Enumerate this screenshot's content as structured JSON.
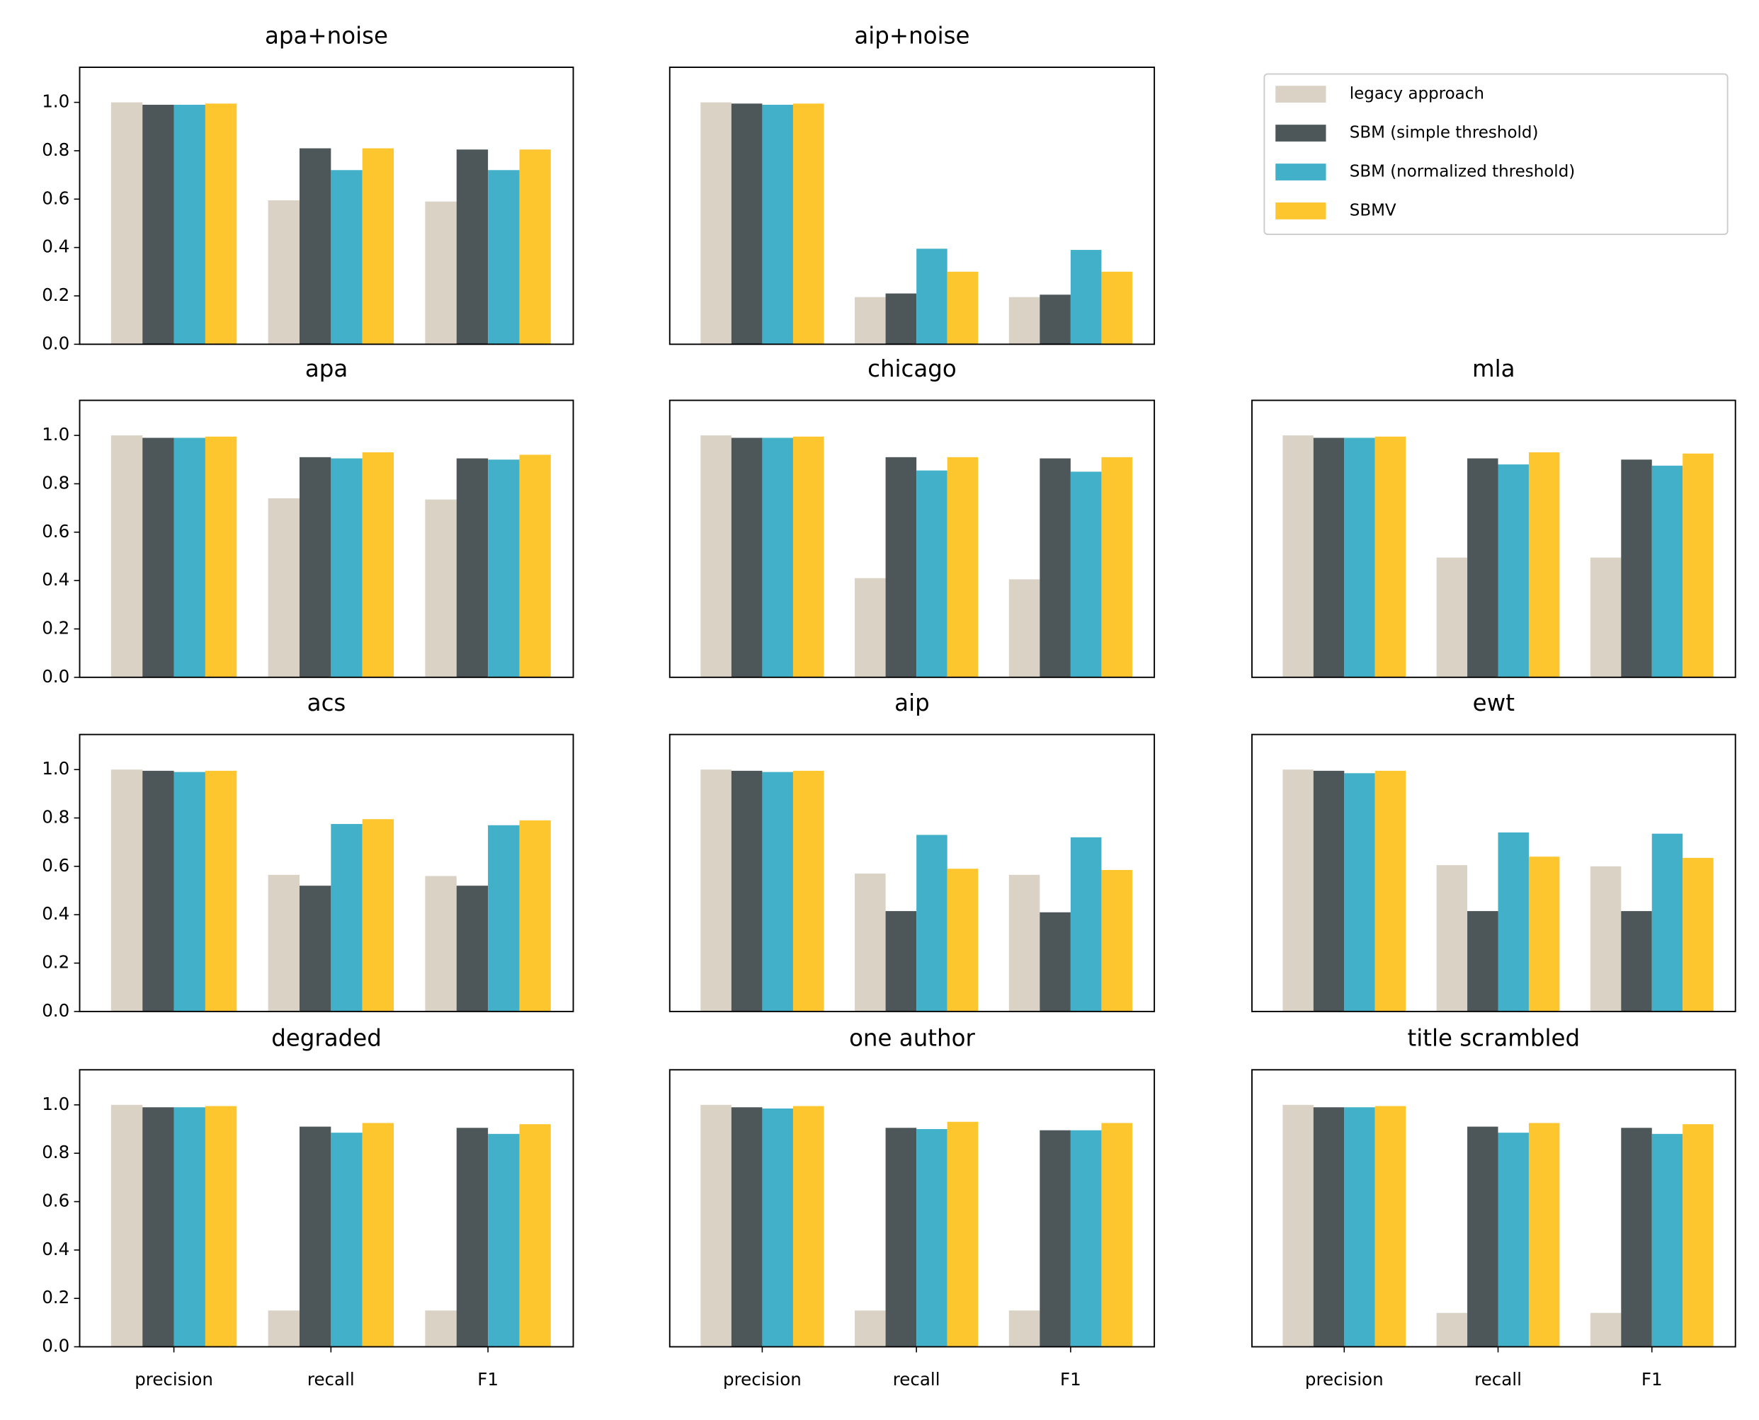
{
  "chart_data": [
    {
      "type": "bar",
      "title": "apa+noise",
      "categories": [
        "precision",
        "recall",
        "F1"
      ],
      "ylim": [
        0,
        1.145
      ],
      "yticks": [
        {
          "value": 0,
          "label": "0.0"
        },
        {
          "value": 0.2,
          "label": "0.2"
        },
        {
          "value": 0.4,
          "label": "0.4"
        },
        {
          "value": 0.6,
          "label": "0.6"
        },
        {
          "value": 0.8,
          "label": "0.8"
        },
        {
          "value": 1,
          "label": "1.0"
        }
      ],
      "series": [
        {
          "name": "legacy approach",
          "color": "#d9d2c5",
          "values": [
            1.0,
            0.595,
            0.59
          ]
        },
        {
          "name": "SBM (simple threshold)",
          "color": "#4d5659",
          "values": [
            0.99,
            0.81,
            0.805
          ]
        },
        {
          "name": "SBM (normalized threshold)",
          "color": "#42b0c8",
          "values": [
            0.99,
            0.72,
            0.72
          ]
        },
        {
          "name": "SBMV",
          "color": "#fdc52e",
          "values": [
            0.995,
            0.81,
            0.805
          ]
        }
      ]
    },
    {
      "type": "bar",
      "title": "aip+noise",
      "categories": [
        "precision",
        "recall",
        "F1"
      ],
      "ylim": [
        0,
        1.145
      ],
      "series": [
        {
          "name": "legacy approach",
          "color": "#d9d2c5",
          "values": [
            1.0,
            0.195,
            0.195
          ]
        },
        {
          "name": "SBM (simple threshold)",
          "color": "#4d5659",
          "values": [
            0.995,
            0.21,
            0.205
          ]
        },
        {
          "name": "SBM (normalized threshold)",
          "color": "#42b0c8",
          "values": [
            0.99,
            0.395,
            0.39
          ]
        },
        {
          "name": "SBMV",
          "color": "#fdc52e",
          "values": [
            0.995,
            0.3,
            0.3
          ]
        }
      ]
    },
    {
      "type": "bar",
      "title": "apa",
      "categories": [
        "precision",
        "recall",
        "F1"
      ],
      "ylim": [
        0,
        1.145
      ],
      "yticks": [
        {
          "value": 0,
          "label": "0.0"
        },
        {
          "value": 0.2,
          "label": "0.2"
        },
        {
          "value": 0.4,
          "label": "0.4"
        },
        {
          "value": 0.6,
          "label": "0.6"
        },
        {
          "value": 0.8,
          "label": "0.8"
        },
        {
          "value": 1,
          "label": "1.0"
        }
      ],
      "series": [
        {
          "name": "legacy approach",
          "color": "#d9d2c5",
          "values": [
            1.0,
            0.74,
            0.735
          ]
        },
        {
          "name": "SBM (simple threshold)",
          "color": "#4d5659",
          "values": [
            0.99,
            0.91,
            0.905
          ]
        },
        {
          "name": "SBM (normalized threshold)",
          "color": "#42b0c8",
          "values": [
            0.99,
            0.905,
            0.9
          ]
        },
        {
          "name": "SBMV",
          "color": "#fdc52e",
          "values": [
            0.995,
            0.93,
            0.92
          ]
        }
      ]
    },
    {
      "type": "bar",
      "title": "chicago",
      "categories": [
        "precision",
        "recall",
        "F1"
      ],
      "ylim": [
        0,
        1.145
      ],
      "series": [
        {
          "name": "legacy approach",
          "color": "#d9d2c5",
          "values": [
            1.0,
            0.41,
            0.405
          ]
        },
        {
          "name": "SBM (simple threshold)",
          "color": "#4d5659",
          "values": [
            0.99,
            0.91,
            0.905
          ]
        },
        {
          "name": "SBM (normalized threshold)",
          "color": "#42b0c8",
          "values": [
            0.99,
            0.855,
            0.85
          ]
        },
        {
          "name": "SBMV",
          "color": "#fdc52e",
          "values": [
            0.995,
            0.91,
            0.91
          ]
        }
      ]
    },
    {
      "type": "bar",
      "title": "mla",
      "categories": [
        "precision",
        "recall",
        "F1"
      ],
      "ylim": [
        0,
        1.145
      ],
      "series": [
        {
          "name": "legacy approach",
          "color": "#d9d2c5",
          "values": [
            1.0,
            0.495,
            0.495
          ]
        },
        {
          "name": "SBM (simple threshold)",
          "color": "#4d5659",
          "values": [
            0.99,
            0.905,
            0.9
          ]
        },
        {
          "name": "SBM (normalized threshold)",
          "color": "#42b0c8",
          "values": [
            0.99,
            0.88,
            0.875
          ]
        },
        {
          "name": "SBMV",
          "color": "#fdc52e",
          "values": [
            0.995,
            0.93,
            0.925
          ]
        }
      ]
    },
    {
      "type": "bar",
      "title": "acs",
      "categories": [
        "precision",
        "recall",
        "F1"
      ],
      "ylim": [
        0,
        1.145
      ],
      "yticks": [
        {
          "value": 0,
          "label": "0.0"
        },
        {
          "value": 0.2,
          "label": "0.2"
        },
        {
          "value": 0.4,
          "label": "0.4"
        },
        {
          "value": 0.6,
          "label": "0.6"
        },
        {
          "value": 0.8,
          "label": "0.8"
        },
        {
          "value": 1,
          "label": "1.0"
        }
      ],
      "series": [
        {
          "name": "legacy approach",
          "color": "#d9d2c5",
          "values": [
            1.0,
            0.565,
            0.56
          ]
        },
        {
          "name": "SBM (simple threshold)",
          "color": "#4d5659",
          "values": [
            0.995,
            0.52,
            0.52
          ]
        },
        {
          "name": "SBM (normalized threshold)",
          "color": "#42b0c8",
          "values": [
            0.99,
            0.775,
            0.77
          ]
        },
        {
          "name": "SBMV",
          "color": "#fdc52e",
          "values": [
            0.995,
            0.795,
            0.79
          ]
        }
      ]
    },
    {
      "type": "bar",
      "title": "aip",
      "categories": [
        "precision",
        "recall",
        "F1"
      ],
      "ylim": [
        0,
        1.145
      ],
      "series": [
        {
          "name": "legacy approach",
          "color": "#d9d2c5",
          "values": [
            1.0,
            0.57,
            0.565
          ]
        },
        {
          "name": "SBM (simple threshold)",
          "color": "#4d5659",
          "values": [
            0.995,
            0.415,
            0.41
          ]
        },
        {
          "name": "SBM (normalized threshold)",
          "color": "#42b0c8",
          "values": [
            0.99,
            0.73,
            0.72
          ]
        },
        {
          "name": "SBMV",
          "color": "#fdc52e",
          "values": [
            0.995,
            0.59,
            0.585
          ]
        }
      ]
    },
    {
      "type": "bar",
      "title": "ewt",
      "categories": [
        "precision",
        "recall",
        "F1"
      ],
      "ylim": [
        0,
        1.145
      ],
      "series": [
        {
          "name": "legacy approach",
          "color": "#d9d2c5",
          "values": [
            1.0,
            0.605,
            0.6
          ]
        },
        {
          "name": "SBM (simple threshold)",
          "color": "#4d5659",
          "values": [
            0.995,
            0.415,
            0.415
          ]
        },
        {
          "name": "SBM (normalized threshold)",
          "color": "#42b0c8",
          "values": [
            0.985,
            0.74,
            0.735
          ]
        },
        {
          "name": "SBMV",
          "color": "#fdc52e",
          "values": [
            0.995,
            0.64,
            0.635
          ]
        }
      ]
    },
    {
      "type": "bar",
      "title": "degraded",
      "categories": [
        "precision",
        "recall",
        "F1"
      ],
      "ylim": [
        0,
        1.145
      ],
      "yticks": [
        {
          "value": 0,
          "label": "0.0"
        },
        {
          "value": 0.2,
          "label": "0.2"
        },
        {
          "value": 0.4,
          "label": "0.4"
        },
        {
          "value": 0.6,
          "label": "0.6"
        },
        {
          "value": 0.8,
          "label": "0.8"
        },
        {
          "value": 1,
          "label": "1.0"
        }
      ],
      "series": [
        {
          "name": "legacy approach",
          "color": "#d9d2c5",
          "values": [
            1.0,
            0.15,
            0.15
          ]
        },
        {
          "name": "SBM (simple threshold)",
          "color": "#4d5659",
          "values": [
            0.99,
            0.91,
            0.905
          ]
        },
        {
          "name": "SBM (normalized threshold)",
          "color": "#42b0c8",
          "values": [
            0.99,
            0.885,
            0.88
          ]
        },
        {
          "name": "SBMV",
          "color": "#fdc52e",
          "values": [
            0.995,
            0.925,
            0.92
          ]
        }
      ]
    },
    {
      "type": "bar",
      "title": "one author",
      "categories": [
        "precision",
        "recall",
        "F1"
      ],
      "ylim": [
        0,
        1.145
      ],
      "series": [
        {
          "name": "legacy approach",
          "color": "#d9d2c5",
          "values": [
            1.0,
            0.15,
            0.15
          ]
        },
        {
          "name": "SBM (simple threshold)",
          "color": "#4d5659",
          "values": [
            0.99,
            0.905,
            0.895
          ]
        },
        {
          "name": "SBM (normalized threshold)",
          "color": "#42b0c8",
          "values": [
            0.985,
            0.9,
            0.895
          ]
        },
        {
          "name": "SBMV",
          "color": "#fdc52e",
          "values": [
            0.995,
            0.93,
            0.925
          ]
        }
      ]
    },
    {
      "type": "bar",
      "title": "title scrambled",
      "categories": [
        "precision",
        "recall",
        "F1"
      ],
      "ylim": [
        0,
        1.145
      ],
      "series": [
        {
          "name": "legacy approach",
          "color": "#d9d2c5",
          "values": [
            1.0,
            0.14,
            0.14
          ]
        },
        {
          "name": "SBM (simple threshold)",
          "color": "#4d5659",
          "values": [
            0.99,
            0.91,
            0.905
          ]
        },
        {
          "name": "SBM (normalized threshold)",
          "color": "#42b0c8",
          "values": [
            0.99,
            0.885,
            0.88
          ]
        },
        {
          "name": "SBMV",
          "color": "#fdc52e",
          "values": [
            0.995,
            0.925,
            0.92
          ]
        }
      ]
    }
  ]
}
